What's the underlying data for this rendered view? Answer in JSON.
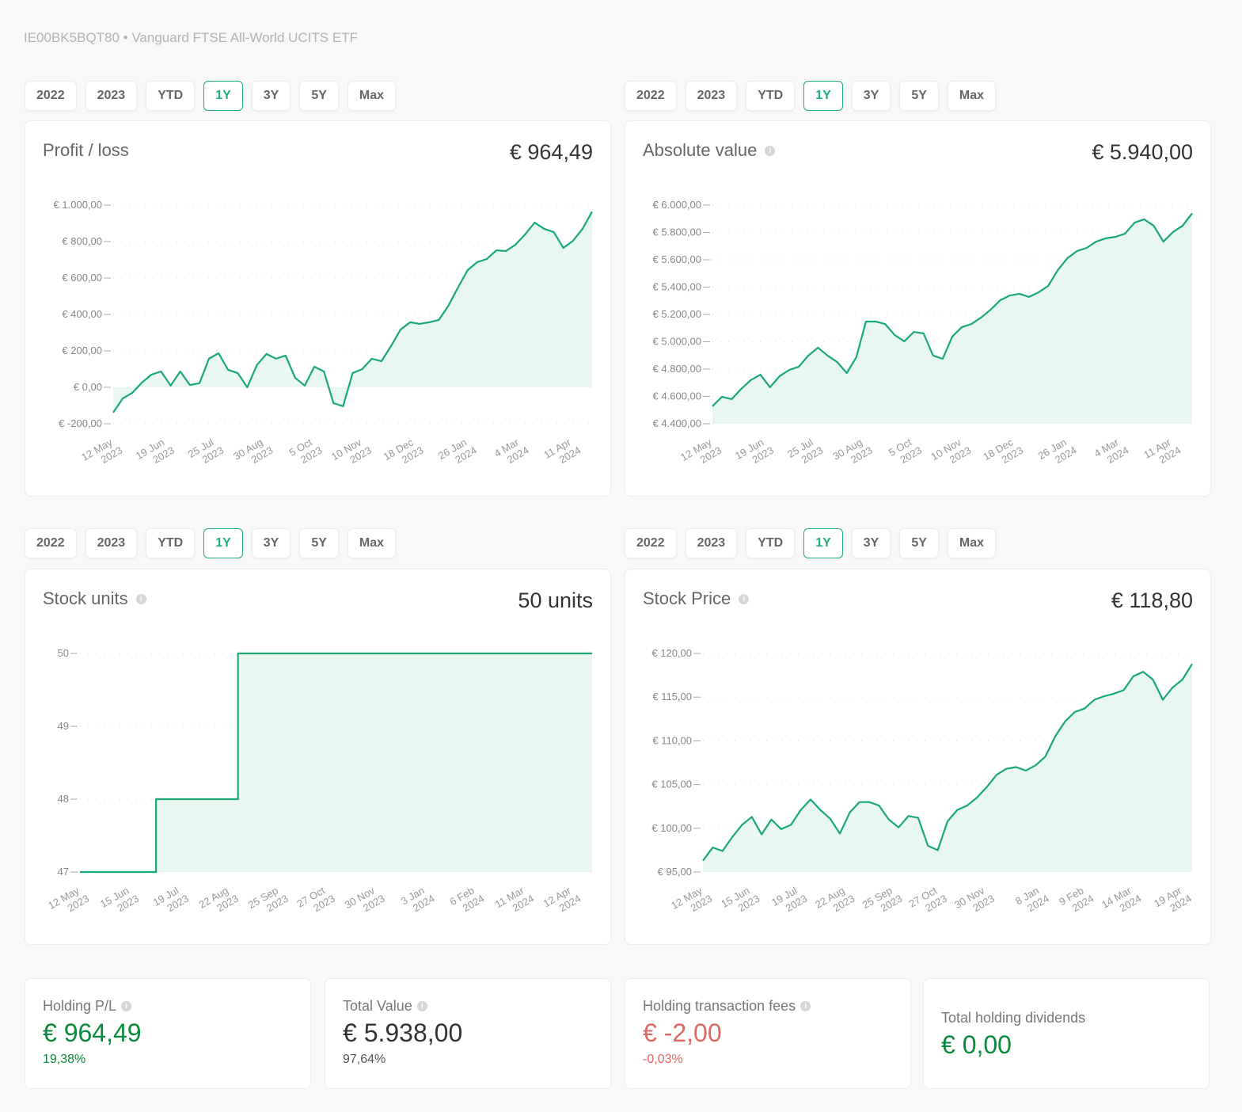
{
  "header": {
    "subtitle": "IE00BK5BQT80 • Vanguard FTSE All-World UCITS ETF"
  },
  "range_buttons": [
    "2022",
    "2023",
    "YTD",
    "1Y",
    "3Y",
    "5Y",
    "Max"
  ],
  "active_range": "1Y",
  "colors": {
    "accent": "#1fae7e",
    "line": "#1aa874",
    "fill": "#e8f7f0",
    "positive": "#0a8a3c",
    "negative": "#e06666"
  },
  "cards": [
    {
      "title": "Profit / loss",
      "value": "€ 964,49",
      "info": false
    },
    {
      "title": "Absolute value",
      "value": "€ 5.940,00",
      "info": true
    },
    {
      "title": "Stock units",
      "value": "50 units",
      "info": true
    },
    {
      "title": "Stock Price",
      "value": "€ 118,80",
      "info": true
    }
  ],
  "chart_data": [
    {
      "type": "area",
      "ylim": [
        -200,
        1000
      ],
      "yticks": [
        1000,
        800,
        600,
        400,
        200,
        0,
        -200
      ],
      "ytick_labels": [
        "€ 1.000,00",
        "€ 800,00",
        "€ 600,00",
        "€ 400,00",
        "€ 200,00",
        "€ 0,00",
        "€ -200,00"
      ],
      "xticks": [
        "2023-05-12",
        "2023-06-19",
        "2023-07-25",
        "2023-08-30",
        "2023-10-05",
        "2023-11-10",
        "2023-12-18",
        "2024-01-26",
        "2024-03-04",
        "2024-04-11"
      ],
      "xtick_labels": [
        [
          "12 May",
          "2023"
        ],
        [
          "19 Jun",
          "2023"
        ],
        [
          "25 Jul",
          "2023"
        ],
        [
          "30 Aug",
          "2023"
        ],
        [
          "5 Oct",
          "2023"
        ],
        [
          "10 Nov",
          "2023"
        ],
        [
          "18 Dec",
          "2023"
        ],
        [
          "26 Jan",
          "2024"
        ],
        [
          "4 Mar",
          "2024"
        ],
        [
          "11 Apr",
          "2024"
        ]
      ],
      "grid": true,
      "x": [
        "2023-05-12",
        "2023-05-19",
        "2023-05-26",
        "2023-06-02",
        "2023-06-09",
        "2023-06-16",
        "2023-06-23",
        "2023-06-30",
        "2023-07-07",
        "2023-07-14",
        "2023-07-21",
        "2023-07-28",
        "2023-08-04",
        "2023-08-11",
        "2023-08-18",
        "2023-08-25",
        "2023-09-01",
        "2023-09-08",
        "2023-09-15",
        "2023-09-22",
        "2023-09-29",
        "2023-10-06",
        "2023-10-13",
        "2023-10-20",
        "2023-10-27",
        "2023-11-03",
        "2023-11-10",
        "2023-11-17",
        "2023-11-24",
        "2023-12-01",
        "2023-12-08",
        "2023-12-15",
        "2023-12-22",
        "2023-12-29",
        "2024-01-05",
        "2024-01-12",
        "2024-01-19",
        "2024-01-26",
        "2024-02-02",
        "2024-02-09",
        "2024-02-16",
        "2024-02-23",
        "2024-03-01",
        "2024-03-08",
        "2024-03-15",
        "2024-03-22",
        "2024-03-29",
        "2024-04-05",
        "2024-04-12",
        "2024-04-19",
        "2024-04-26"
      ],
      "values": [
        -139,
        -61,
        -30,
        26,
        70,
        87,
        9,
        87,
        13,
        22,
        157,
        187,
        96,
        78,
        0,
        122,
        183,
        157,
        174,
        52,
        9,
        113,
        87,
        -87,
        -104,
        78,
        100,
        157,
        143,
        226,
        317,
        357,
        348,
        357,
        370,
        448,
        548,
        643,
        687,
        704,
        752,
        748,
        783,
        839,
        904,
        870,
        852,
        765,
        804,
        870,
        964.49
      ]
    },
    {
      "type": "area",
      "ylim": [
        4400,
        6000
      ],
      "yticks": [
        6000,
        5800,
        5600,
        5400,
        5200,
        5000,
        4800,
        4600,
        4400
      ],
      "ytick_labels": [
        "€ 6.000,00",
        "€ 5.800,00",
        "€ 5.600,00",
        "€ 5.400,00",
        "€ 5.200,00",
        "€ 5.000,00",
        "€ 4.800,00",
        "€ 4.600,00",
        "€ 4.400,00"
      ],
      "xticks": [
        "2023-05-12",
        "2023-06-19",
        "2023-07-25",
        "2023-08-30",
        "2023-10-05",
        "2023-11-10",
        "2023-12-18",
        "2024-01-26",
        "2024-03-04",
        "2024-04-11"
      ],
      "xtick_labels": [
        [
          "12 May",
          "2023"
        ],
        [
          "19 Jun",
          "2023"
        ],
        [
          "25 Jul",
          "2023"
        ],
        [
          "30 Aug",
          "2023"
        ],
        [
          "5 Oct",
          "2023"
        ],
        [
          "10 Nov",
          "2023"
        ],
        [
          "18 Dec",
          "2023"
        ],
        [
          "26 Jan",
          "2024"
        ],
        [
          "4 Mar",
          "2024"
        ],
        [
          "11 Apr",
          "2024"
        ]
      ],
      "grid": true,
      "x": [
        "2023-05-12",
        "2023-05-19",
        "2023-05-26",
        "2023-06-02",
        "2023-06-09",
        "2023-06-16",
        "2023-06-23",
        "2023-06-30",
        "2023-07-07",
        "2023-07-14",
        "2023-07-21",
        "2023-07-28",
        "2023-08-04",
        "2023-08-11",
        "2023-08-18",
        "2023-08-25",
        "2023-09-01",
        "2023-09-08",
        "2023-09-15",
        "2023-09-22",
        "2023-09-29",
        "2023-10-06",
        "2023-10-13",
        "2023-10-20",
        "2023-10-27",
        "2023-11-03",
        "2023-11-10",
        "2023-11-17",
        "2023-11-24",
        "2023-12-01",
        "2023-12-08",
        "2023-12-15",
        "2023-12-22",
        "2023-12-29",
        "2024-01-05",
        "2024-01-12",
        "2024-01-19",
        "2024-01-26",
        "2024-02-02",
        "2024-02-09",
        "2024-02-16",
        "2024-02-23",
        "2024-03-01",
        "2024-03-08",
        "2024-03-15",
        "2024-03-22",
        "2024-03-29",
        "2024-04-05",
        "2024-04-12",
        "2024-04-19",
        "2024-04-26"
      ],
      "values": [
        4528,
        4597,
        4580,
        4655,
        4719,
        4759,
        4667,
        4748,
        4794,
        4817,
        4899,
        4957,
        4899,
        4852,
        4771,
        4887,
        5148,
        5148,
        5130,
        5049,
        5003,
        5072,
        5061,
        4899,
        4875,
        5038,
        5107,
        5130,
        5177,
        5235,
        5304,
        5339,
        5351,
        5328,
        5362,
        5409,
        5525,
        5612,
        5664,
        5687,
        5733,
        5757,
        5768,
        5791,
        5872,
        5896,
        5849,
        5733,
        5803,
        5849,
        5940
      ]
    },
    {
      "type": "step-area",
      "ylim": [
        47,
        50
      ],
      "yticks": [
        50,
        49,
        48,
        47
      ],
      "ytick_labels": [
        "50",
        "49",
        "48",
        "47"
      ],
      "xticks": [
        "2023-05-12",
        "2023-06-15",
        "2023-07-19",
        "2023-08-22",
        "2023-09-25",
        "2023-10-27",
        "2023-11-30",
        "2024-01-03",
        "2024-02-06",
        "2024-03-11",
        "2024-04-12"
      ],
      "xtick_labels": [
        [
          "12 May",
          "2023"
        ],
        [
          "15 Jun",
          "2023"
        ],
        [
          "19 Jul",
          "2023"
        ],
        [
          "22 Aug",
          "2023"
        ],
        [
          "25 Sep",
          "2023"
        ],
        [
          "27 Oct",
          "2023"
        ],
        [
          "30 Nov",
          "2023"
        ],
        [
          "3 Jan",
          "2024"
        ],
        [
          "6 Feb",
          "2024"
        ],
        [
          "11 Mar",
          "2024"
        ],
        [
          "12 Apr",
          "2024"
        ]
      ],
      "grid": true,
      "x": [
        "2023-05-12",
        "2023-07-03",
        "2023-08-28",
        "2024-04-26"
      ],
      "values": [
        47,
        48,
        50,
        50
      ]
    },
    {
      "type": "area",
      "ylim": [
        95,
        120
      ],
      "yticks": [
        120,
        115,
        110,
        105,
        100,
        95
      ],
      "ytick_labels": [
        "€ 120,00",
        "€ 115,00",
        "€ 110,00",
        "€ 105,00",
        "€ 100,00",
        "€ 95,00"
      ],
      "xticks": [
        "2023-05-12",
        "2023-06-15",
        "2023-07-19",
        "2023-08-22",
        "2023-09-25",
        "2023-10-27",
        "2023-11-30",
        "2024-01-08",
        "2024-02-09",
        "2024-03-14",
        "2024-04-19"
      ],
      "xtick_labels": [
        [
          "12 May",
          "2023"
        ],
        [
          "15 Jun",
          "2023"
        ],
        [
          "19 Jul",
          "2023"
        ],
        [
          "22 Aug",
          "2023"
        ],
        [
          "25 Sep",
          "2023"
        ],
        [
          "27 Oct",
          "2023"
        ],
        [
          "30 Nov",
          "2023"
        ],
        [
          "8 Jan",
          "2024"
        ],
        [
          "9 Feb",
          "2024"
        ],
        [
          "14 Mar",
          "2024"
        ],
        [
          "19 Apr",
          "2024"
        ]
      ],
      "grid": true,
      "x": [
        "2023-05-12",
        "2023-05-19",
        "2023-05-26",
        "2023-06-02",
        "2023-06-09",
        "2023-06-16",
        "2023-06-23",
        "2023-06-30",
        "2023-07-07",
        "2023-07-14",
        "2023-07-21",
        "2023-07-28",
        "2023-08-04",
        "2023-08-11",
        "2023-08-18",
        "2023-08-25",
        "2023-09-01",
        "2023-09-08",
        "2023-09-15",
        "2023-09-22",
        "2023-09-29",
        "2023-10-06",
        "2023-10-13",
        "2023-10-20",
        "2023-10-27",
        "2023-11-03",
        "2023-11-10",
        "2023-11-17",
        "2023-11-24",
        "2023-12-01",
        "2023-12-08",
        "2023-12-15",
        "2023-12-22",
        "2023-12-29",
        "2024-01-05",
        "2024-01-12",
        "2024-01-19",
        "2024-01-26",
        "2024-02-02",
        "2024-02-09",
        "2024-02-16",
        "2024-02-23",
        "2024-03-01",
        "2024-03-08",
        "2024-03-15",
        "2024-03-22",
        "2024-03-29",
        "2024-04-05",
        "2024-04-12",
        "2024-04-19",
        "2024-04-26"
      ],
      "values": [
        96.3,
        97.8,
        97.4,
        99.0,
        100.4,
        101.3,
        99.3,
        101.0,
        99.9,
        100.4,
        102.1,
        103.3,
        102.1,
        101.1,
        99.4,
        101.8,
        103.0,
        103.0,
        102.6,
        101.0,
        100.1,
        101.4,
        101.2,
        98.0,
        97.5,
        100.8,
        102.1,
        102.6,
        103.5,
        104.7,
        106.1,
        106.8,
        107.0,
        106.6,
        107.2,
        108.2,
        110.5,
        112.2,
        113.3,
        113.7,
        114.7,
        115.1,
        115.4,
        115.8,
        117.4,
        117.9,
        117.0,
        114.7,
        116.1,
        117.0,
        118.8
      ]
    }
  ],
  "stats": [
    {
      "label": "Holding P/L",
      "value": "€ 964,49",
      "pct": "19,38%",
      "info": true
    },
    {
      "label": "Total Value",
      "value": "€ 5.938,00",
      "pct": "97,64%",
      "info": true
    },
    {
      "label": "Holding transaction fees",
      "value": "€ -2,00",
      "pct": "-0,03%",
      "info": true
    },
    {
      "label": "Total holding dividends",
      "value": "€ 0,00",
      "info": false
    }
  ]
}
